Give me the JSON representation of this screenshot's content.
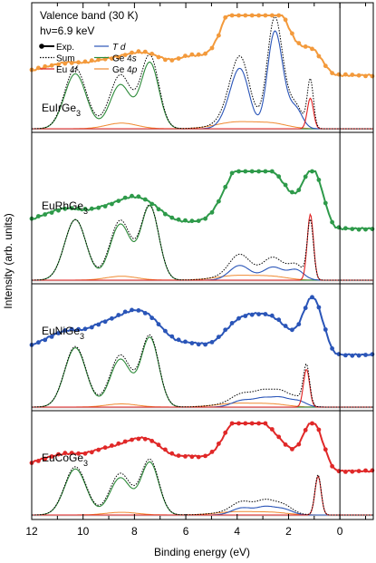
{
  "chart_data": {
    "type": "line",
    "annotation_title": "Valence band (30 K)",
    "annotation_energy": "hν=6.9 keV",
    "xlabel": "Binding energy (eV)",
    "ylabel": "Intensity (arb. units)",
    "xlim": [
      12,
      -1.3
    ],
    "x_reversed": true,
    "x_ticks": [
      12,
      10,
      8,
      6,
      4,
      2,
      0
    ],
    "vertical_line_at": 0,
    "legend": [
      {
        "label": "Exp.",
        "color": "#000000",
        "style": "marker-line"
      },
      {
        "label": "Sum",
        "color": "#000000",
        "style": "dotted"
      },
      {
        "label": "Eu 4f",
        "color": "#e02020",
        "style": "solid"
      },
      {
        "label": "T d",
        "color": "#2a55b8",
        "style": "solid"
      },
      {
        "label": "Ge 4s",
        "color": "#2e8b3a",
        "style": "solid"
      },
      {
        "label": "Ge 4p",
        "color": "#f08a30",
        "style": "solid"
      }
    ],
    "panels": [
      {
        "name": "EuIrGe3",
        "label_main": "EuIrGe",
        "label_sub": "3",
        "exp_color": "#f39a3c"
      },
      {
        "name": "EuRhGe3",
        "label_main": "EuRhGe",
        "label_sub": "3",
        "exp_color": "#2e9a4a"
      },
      {
        "name": "EuNiGe3",
        "label_main": "EuNiGe",
        "label_sub": "3",
        "exp_color": "#2a55b8"
      },
      {
        "name": "EuCoGe3",
        "label_main": "EuCoGe",
        "label_sub": "3",
        "exp_color": "#e02828"
      }
    ]
  }
}
